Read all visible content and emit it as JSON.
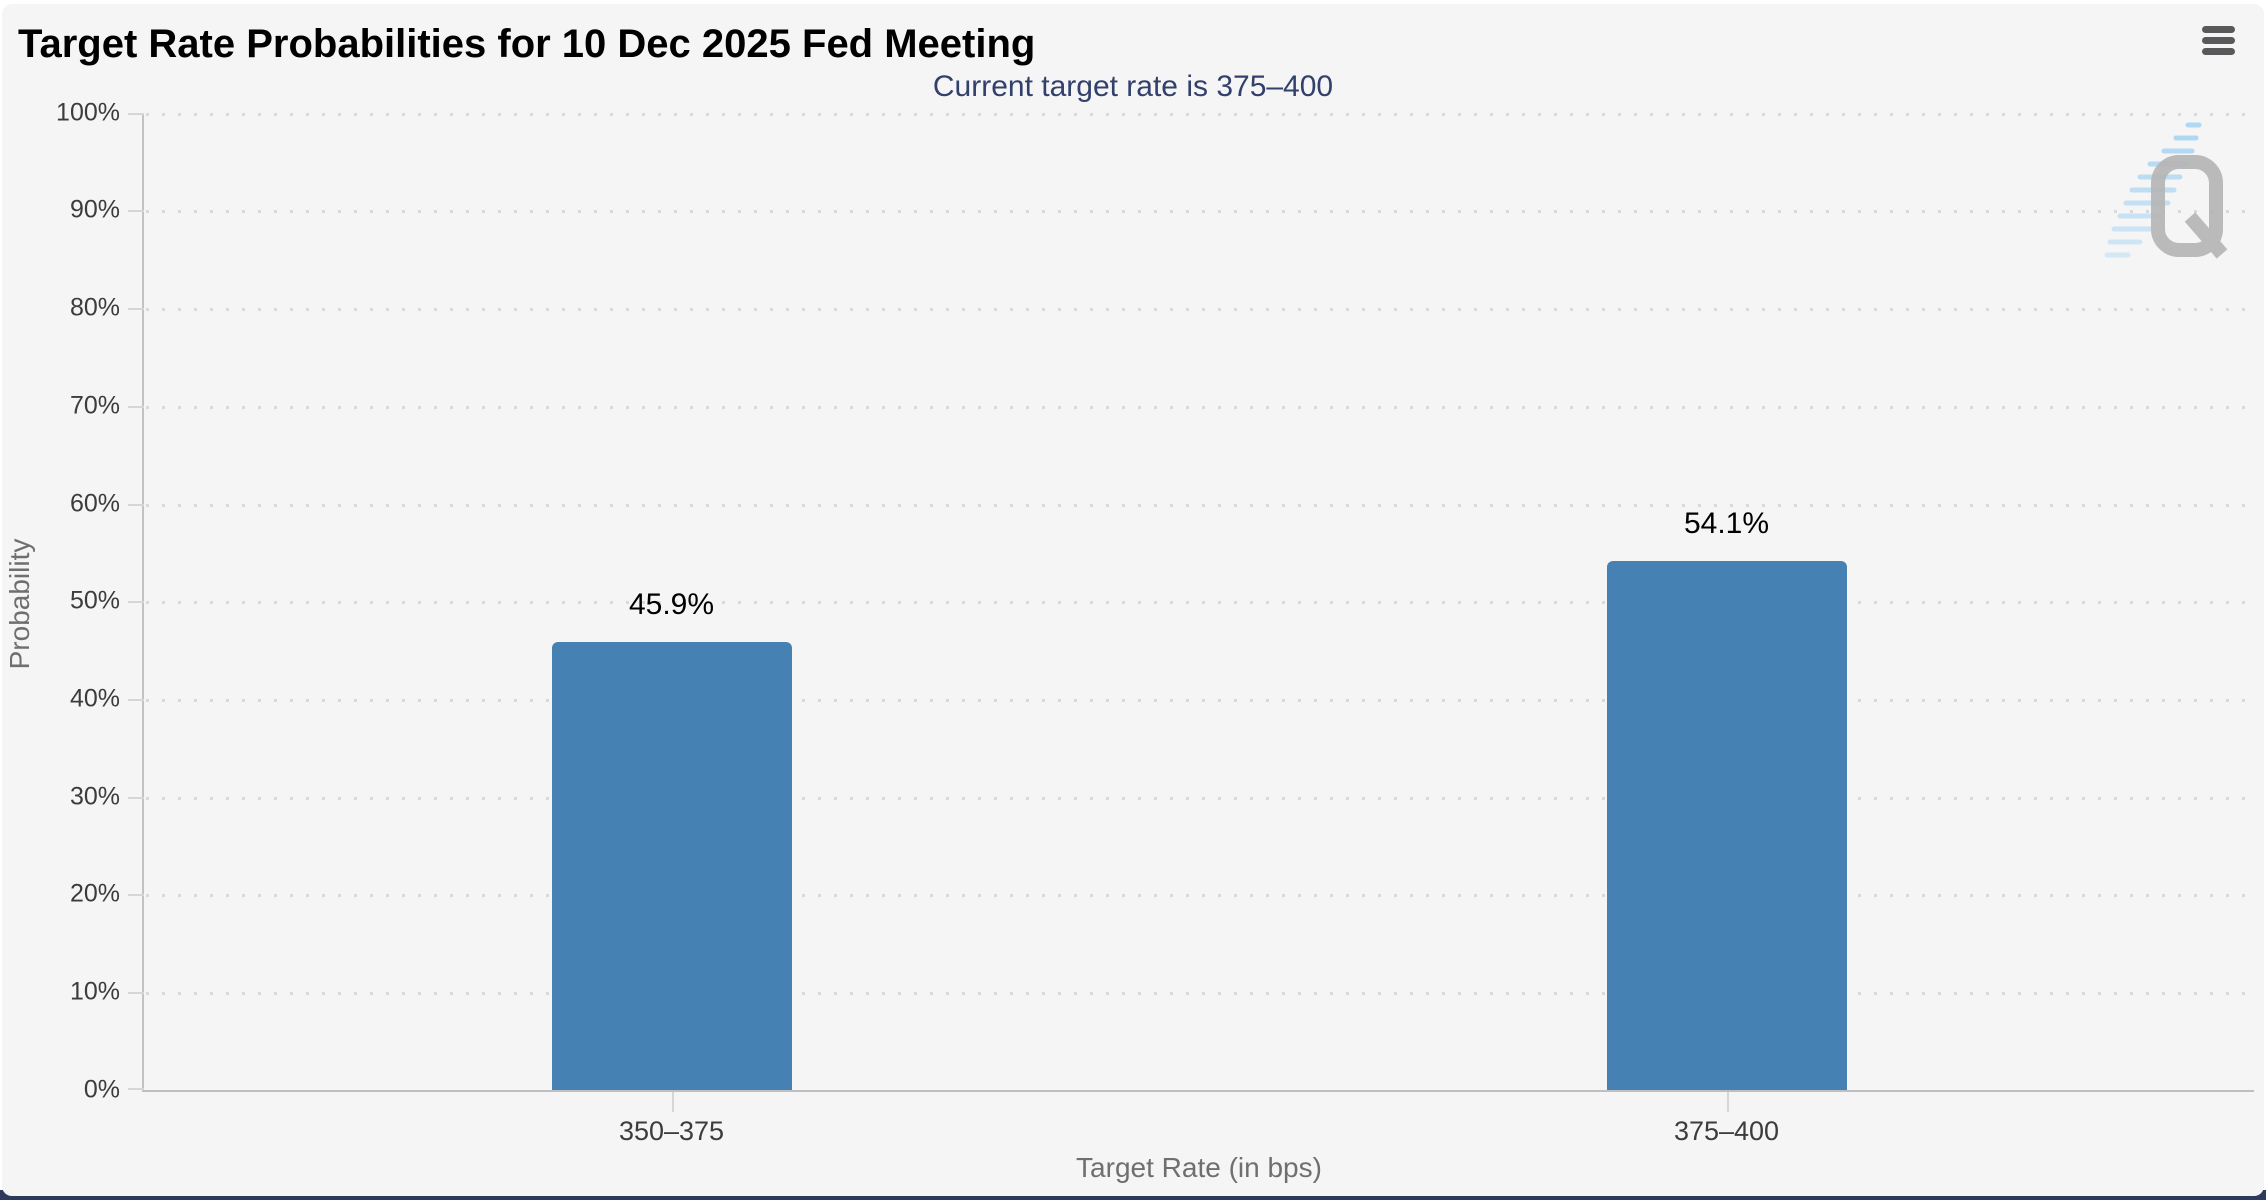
{
  "chart_data": {
    "type": "bar",
    "title": "Target Rate Probabilities for 10 Dec 2025 Fed Meeting",
    "subtitle": "Current target rate is 375–400",
    "categories": [
      "350–375",
      "375–400"
    ],
    "values": [
      45.9,
      54.1
    ],
    "value_labels": [
      "45.9%",
      "54.1%"
    ],
    "xlabel": "Target Rate (in bps)",
    "ylabel": "Probability",
    "ylim": [
      0,
      100
    ],
    "ytick_labels": [
      "100%",
      "90%",
      "80%",
      "70%",
      "60%",
      "50%",
      "40%",
      "30%",
      "20%",
      "10%",
      "0%"
    ],
    "grid": "dotted horizontal gridlines every 10%",
    "legend_position": "none",
    "bar_color": "#4681b4"
  },
  "header": {
    "menu_icon": "hamburger-menu-icon"
  },
  "watermark": {
    "icon": "quikstrike-logo",
    "letter": "Q",
    "gray": "#b5b5b5",
    "blue": "#a3d3f3"
  },
  "colors": {
    "card_background": "#f5f5f6",
    "title_text": "#000000",
    "subtitle_text": "#33406b",
    "tick_label": "#3c3c3c",
    "axis_title": "#6f6f6f",
    "axis_line": "#c2c2c2",
    "grid_dot": "#d9d9d9",
    "bar_fill": "#4681b4",
    "bottom_strip": "#2e3a5c",
    "menu_icon": "#59595b"
  }
}
